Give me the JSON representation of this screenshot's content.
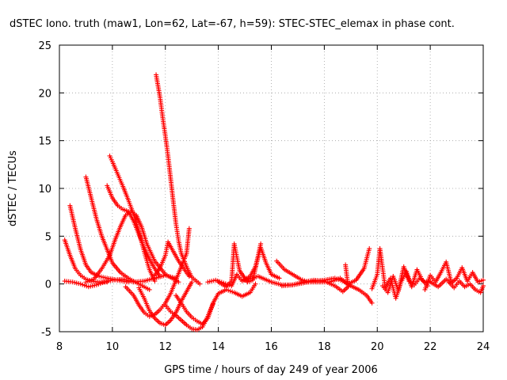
{
  "chart_data": {
    "type": "scatter",
    "title": "dSTEC Iono. truth (maw1, Lon=62, Lat=-67, h=59): STEC-STEC_elemax in phase cont.",
    "xlabel": "GPS time / hours of day 249 of year 2006",
    "ylabel": "dSTEC  / TECUs",
    "xlim": [
      8,
      24
    ],
    "ylim": [
      -5,
      25
    ],
    "xticks": [
      "8",
      "10",
      "12",
      "14",
      "16",
      "18",
      "20",
      "22",
      "24"
    ],
    "yticks": [
      "-5",
      "0",
      "5",
      "10",
      "15",
      "20",
      "25"
    ],
    "grid": true,
    "marker": "+",
    "color": "#ff0000",
    "series": [
      {
        "points": [
          [
            8.2,
            4.6
          ],
          [
            8.4,
            3.0
          ],
          [
            8.6,
            1.6
          ],
          [
            8.8,
            0.9
          ],
          [
            9.0,
            0.5
          ],
          [
            9.2,
            0.3
          ],
          [
            9.5,
            0.2
          ],
          [
            9.8,
            0.2
          ]
        ]
      },
      {
        "points": [
          [
            8.4,
            8.2
          ],
          [
            8.6,
            5.8
          ],
          [
            8.8,
            3.6
          ],
          [
            9.0,
            2.0
          ],
          [
            9.2,
            1.2
          ],
          [
            9.5,
            0.8
          ],
          [
            9.8,
            0.6
          ],
          [
            10.2,
            0.4
          ],
          [
            10.6,
            0.2
          ]
        ]
      },
      {
        "points": [
          [
            8.2,
            0.3
          ],
          [
            8.5,
            0.2
          ],
          [
            8.8,
            0.0
          ],
          [
            9.1,
            -0.3
          ],
          [
            9.4,
            -0.1
          ],
          [
            9.7,
            0.2
          ],
          [
            10.0,
            0.4
          ],
          [
            10.4,
            0.5
          ],
          [
            10.8,
            0.2
          ],
          [
            11.2,
            0.3
          ],
          [
            11.6,
            0.6
          ],
          [
            12.0,
            0.9
          ],
          [
            12.4,
            0.6
          ]
        ]
      },
      {
        "points": [
          [
            9.0,
            11.2
          ],
          [
            9.2,
            9.0
          ],
          [
            9.4,
            6.8
          ],
          [
            9.6,
            5.0
          ],
          [
            9.8,
            3.6
          ],
          [
            10.0,
            2.2
          ],
          [
            10.3,
            1.2
          ],
          [
            10.6,
            0.6
          ],
          [
            11.0,
            0.0
          ],
          [
            11.4,
            -0.6
          ]
        ]
      },
      {
        "points": [
          [
            9.0,
            0.2
          ],
          [
            9.3,
            0.5
          ],
          [
            9.6,
            1.6
          ],
          [
            9.9,
            3.0
          ],
          [
            10.1,
            4.6
          ],
          [
            10.3,
            6.0
          ],
          [
            10.5,
            7.2
          ],
          [
            10.7,
            7.6
          ],
          [
            10.9,
            7.2
          ],
          [
            11.1,
            6.0
          ],
          [
            11.3,
            4.2
          ],
          [
            11.6,
            2.4
          ],
          [
            12.0,
            1.0
          ],
          [
            12.5,
            0.2
          ]
        ]
      },
      {
        "points": [
          [
            9.8,
            10.3
          ],
          [
            10.0,
            9.0
          ],
          [
            10.2,
            8.2
          ],
          [
            10.4,
            7.8
          ],
          [
            10.6,
            7.6
          ],
          [
            10.8,
            6.6
          ],
          [
            11.0,
            5.2
          ],
          [
            11.2,
            3.8
          ],
          [
            11.4,
            2.6
          ],
          [
            11.6,
            1.6
          ],
          [
            11.8,
            0.8
          ]
        ]
      },
      {
        "points": [
          [
            9.9,
            13.4
          ],
          [
            10.0,
            12.8
          ],
          [
            10.2,
            11.5
          ],
          [
            10.4,
            10.2
          ],
          [
            10.6,
            8.8
          ],
          [
            10.8,
            7.3
          ],
          [
            11.0,
            5.5
          ],
          [
            11.2,
            3.4
          ],
          [
            11.4,
            1.5
          ],
          [
            11.6,
            0.3
          ]
        ]
      },
      {
        "points": [
          [
            11.65,
            21.9
          ],
          [
            11.8,
            19.5
          ],
          [
            11.9,
            17.4
          ],
          [
            12.0,
            15.5
          ],
          [
            12.1,
            13.4
          ],
          [
            12.2,
            11.0
          ],
          [
            12.3,
            8.6
          ],
          [
            12.4,
            6.3
          ],
          [
            12.5,
            4.5
          ],
          [
            12.6,
            3.2
          ],
          [
            12.8,
            1.8
          ],
          [
            13.0,
            0.7
          ],
          [
            13.3,
            0.0
          ]
        ]
      },
      {
        "points": [
          [
            10.5,
            -0.3
          ],
          [
            10.8,
            -1.2
          ],
          [
            11.0,
            -2.2
          ],
          [
            11.2,
            -3.0
          ],
          [
            11.4,
            -3.4
          ],
          [
            11.6,
            -3.2
          ],
          [
            11.8,
            -2.7
          ],
          [
            12.0,
            -2.0
          ],
          [
            12.2,
            -1.0
          ],
          [
            12.4,
            0.4
          ],
          [
            12.6,
            1.8
          ],
          [
            12.8,
            3.2
          ],
          [
            12.9,
            5.8
          ]
        ]
      },
      {
        "points": [
          [
            11.0,
            -0.4
          ],
          [
            11.2,
            -1.5
          ],
          [
            11.4,
            -2.8
          ],
          [
            11.6,
            -3.6
          ],
          [
            11.8,
            -4.1
          ],
          [
            12.0,
            -4.3
          ],
          [
            12.2,
            -3.8
          ],
          [
            12.4,
            -3.0
          ],
          [
            12.6,
            -1.8
          ],
          [
            12.8,
            -0.8
          ],
          [
            13.0,
            0.2
          ]
        ]
      },
      {
        "points": [
          [
            11.6,
            0.9
          ],
          [
            11.8,
            1.7
          ],
          [
            12.0,
            3.0
          ],
          [
            12.1,
            4.4
          ],
          [
            12.3,
            3.4
          ],
          [
            12.5,
            2.4
          ],
          [
            12.7,
            1.6
          ],
          [
            12.9,
            0.8
          ]
        ]
      },
      {
        "points": [
          [
            12.0,
            -2.2
          ],
          [
            12.2,
            -2.9
          ],
          [
            12.4,
            -3.3
          ],
          [
            12.6,
            -3.8
          ],
          [
            12.8,
            -4.3
          ],
          [
            13.0,
            -4.7
          ],
          [
            13.2,
            -4.8
          ],
          [
            13.4,
            -4.5
          ],
          [
            13.6,
            -3.4
          ],
          [
            13.8,
            -2.1
          ]
        ]
      },
      {
        "points": [
          [
            12.4,
            -1.2
          ],
          [
            12.6,
            -2.0
          ],
          [
            12.8,
            -2.9
          ],
          [
            13.0,
            -3.5
          ],
          [
            13.2,
            -3.9
          ],
          [
            13.4,
            -4.2
          ],
          [
            13.6,
            -3.6
          ],
          [
            13.8,
            -2.0
          ],
          [
            14.0,
            -1.0
          ],
          [
            14.3,
            -0.6
          ],
          [
            14.6,
            -0.9
          ],
          [
            14.9,
            -1.3
          ],
          [
            15.2,
            -0.9
          ],
          [
            15.4,
            0.0
          ]
        ]
      },
      {
        "points": [
          [
            13.6,
            0.2
          ],
          [
            13.9,
            0.4
          ],
          [
            14.2,
            0.1
          ],
          [
            14.5,
            -0.2
          ],
          [
            14.7,
            1.0
          ],
          [
            14.9,
            0.3
          ],
          [
            15.2,
            0.8
          ],
          [
            15.4,
            1.8
          ],
          [
            15.6,
            3.8
          ],
          [
            15.8,
            2.2
          ],
          [
            16.0,
            1.0
          ],
          [
            16.3,
            0.6
          ]
        ]
      },
      {
        "points": [
          [
            14.0,
            0.2
          ],
          [
            14.3,
            -0.3
          ],
          [
            14.5,
            0.3
          ],
          [
            14.6,
            4.2
          ],
          [
            14.8,
            1.4
          ],
          [
            15.1,
            0.2
          ],
          [
            15.3,
            0.4
          ],
          [
            15.5,
            2.9
          ],
          [
            15.6,
            4.2
          ]
        ]
      },
      {
        "points": [
          [
            15.0,
            0.4
          ],
          [
            15.5,
            0.8
          ],
          [
            16.0,
            0.2
          ],
          [
            16.4,
            -0.1
          ],
          [
            16.8,
            -0.1
          ],
          [
            17.2,
            0.1
          ],
          [
            17.6,
            0.3
          ],
          [
            18.0,
            0.4
          ],
          [
            18.4,
            0.6
          ],
          [
            18.7,
            0.3
          ],
          [
            19.0,
            -0.2
          ],
          [
            19.3,
            -0.6
          ],
          [
            19.6,
            -1.2
          ],
          [
            19.8,
            -2.0
          ]
        ]
      },
      {
        "points": [
          [
            16.2,
            2.4
          ],
          [
            16.5,
            1.5
          ],
          [
            16.8,
            1.0
          ],
          [
            17.1,
            0.5
          ],
          [
            17.4,
            0.2
          ],
          [
            17.8,
            0.2
          ],
          [
            18.2,
            0.2
          ],
          [
            18.6,
            0.6
          ],
          [
            18.9,
            0.0
          ],
          [
            19.2,
            0.4
          ],
          [
            19.5,
            1.6
          ],
          [
            19.7,
            3.7
          ]
        ]
      },
      {
        "points": [
          [
            16.4,
            -0.2
          ],
          [
            16.8,
            -0.1
          ],
          [
            17.2,
            0.2
          ],
          [
            17.6,
            0.4
          ],
          [
            18.0,
            0.3
          ],
          [
            18.4,
            -0.2
          ],
          [
            18.7,
            -0.8
          ],
          [
            18.9,
            -0.3
          ],
          [
            18.8,
            2.0
          ]
        ]
      },
      {
        "points": [
          [
            19.8,
            -0.5
          ],
          [
            20.0,
            1.0
          ],
          [
            20.1,
            3.7
          ],
          [
            20.3,
            -0.4
          ],
          [
            20.5,
            0.6
          ],
          [
            20.7,
            -1.5
          ],
          [
            20.9,
            0.2
          ],
          [
            21.1,
            1.3
          ],
          [
            21.3,
            -0.3
          ],
          [
            21.5,
            1.5
          ],
          [
            21.7,
            0.4
          ],
          [
            21.9,
            -0.2
          ]
        ]
      },
      {
        "points": [
          [
            20.2,
            -0.2
          ],
          [
            20.4,
            -0.9
          ],
          [
            20.6,
            0.8
          ],
          [
            20.8,
            -0.7
          ],
          [
            21.0,
            1.8
          ],
          [
            21.2,
            0.3
          ],
          [
            21.4,
            -0.1
          ],
          [
            21.6,
            0.6
          ],
          [
            21.8,
            0.2
          ],
          [
            22.0,
            0.3
          ]
        ]
      },
      {
        "points": [
          [
            21.8,
            -0.6
          ],
          [
            22.0,
            0.9
          ],
          [
            22.2,
            0.2
          ],
          [
            22.4,
            1.2
          ],
          [
            22.6,
            2.3
          ],
          [
            22.8,
            0.1
          ],
          [
            23.0,
            0.6
          ],
          [
            23.2,
            1.7
          ],
          [
            23.4,
            0.3
          ],
          [
            23.6,
            1.2
          ],
          [
            23.8,
            0.2
          ],
          [
            24.0,
            0.4
          ]
        ]
      },
      {
        "points": [
          [
            22.0,
            0.2
          ],
          [
            22.3,
            -0.3
          ],
          [
            22.6,
            0.5
          ],
          [
            22.9,
            -0.4
          ],
          [
            23.1,
            0.3
          ],
          [
            23.3,
            -0.3
          ],
          [
            23.5,
            0.0
          ],
          [
            23.7,
            -0.6
          ],
          [
            23.9,
            -0.9
          ],
          [
            24.0,
            -0.2
          ]
        ]
      }
    ]
  }
}
